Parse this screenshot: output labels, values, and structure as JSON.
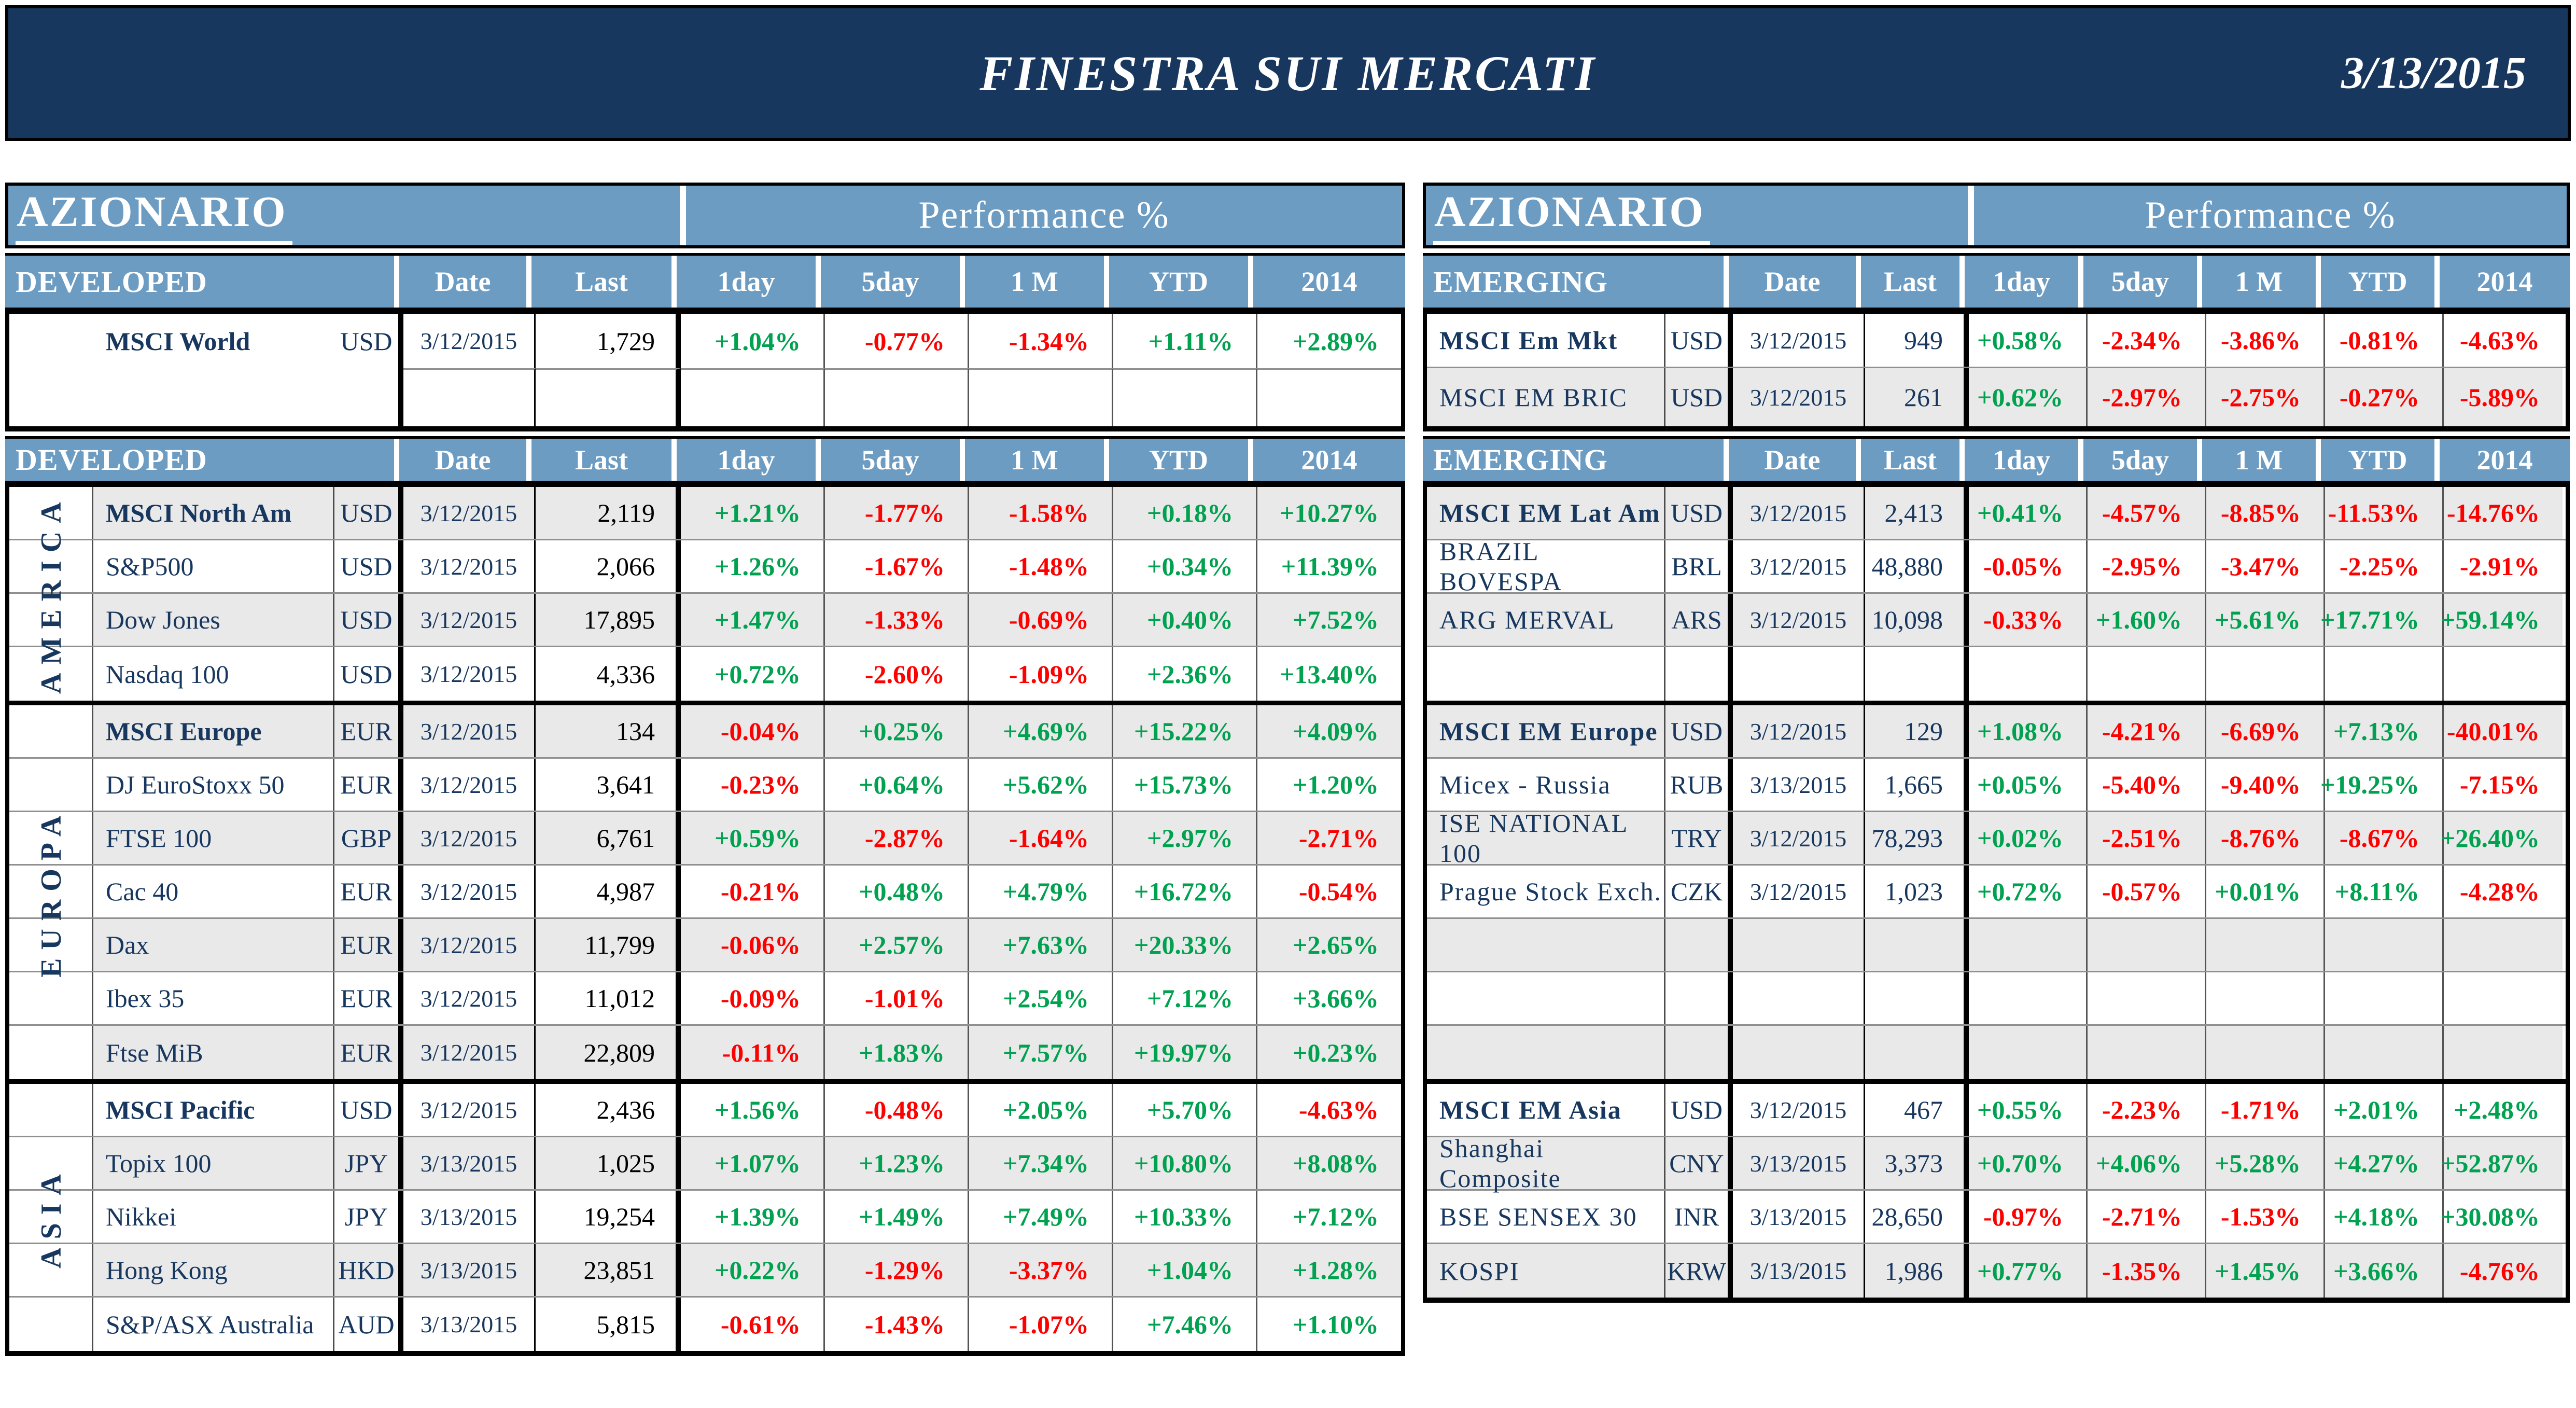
{
  "banner": {
    "title": "FINESTRA SUI MERCATI",
    "date": "3/13/2015"
  },
  "col_headers": {
    "date": "Date",
    "last": "Last",
    "perf": [
      "1day",
      "5day",
      "1 M",
      "YTD",
      "2014"
    ]
  },
  "colors": {
    "banner_navy": "#17375E",
    "header_blue": "#6D9CC3",
    "stripe_gray": "#E9E9E9",
    "positive_green": "#00A14F",
    "negative_red": "#FE0000",
    "text_navy": "#17375E"
  },
  "tables": {
    "left": {
      "title": "AZIONARIO",
      "perf_title": "Performance %",
      "group_label": "DEVELOPED",
      "top_rows": [
        {
          "name": "MSCI World",
          "bold": true,
          "ccy": "USD",
          "date": "3/12/2015",
          "last": "1,729",
          "perf": [
            "+1.04%",
            "-0.77%",
            "-1.34%",
            "+1.11%",
            "+2.89%"
          ],
          "stripe": false
        },
        {
          "name": "",
          "bold": false,
          "ccy": "",
          "date": "",
          "last": "",
          "perf": [
            "",
            "",
            "",
            "",
            ""
          ],
          "stripe": false
        }
      ],
      "sections": [
        {
          "label": "AMERICA",
          "rows": [
            {
              "name": "MSCI North Am",
              "bold": true,
              "ccy": "USD",
              "date": "3/12/2015",
              "last": "2,119",
              "perf": [
                "+1.21%",
                "-1.77%",
                "-1.58%",
                "+0.18%",
                "+10.27%"
              ],
              "stripe": true
            },
            {
              "name": "S&P500",
              "bold": false,
              "ccy": "USD",
              "date": "3/12/2015",
              "last": "2,066",
              "perf": [
                "+1.26%",
                "-1.67%",
                "-1.48%",
                "+0.34%",
                "+11.39%"
              ],
              "stripe": false
            },
            {
              "name": "Dow Jones",
              "bold": false,
              "ccy": "USD",
              "date": "3/12/2015",
              "last": "17,895",
              "perf": [
                "+1.47%",
                "-1.33%",
                "-0.69%",
                "+0.40%",
                "+7.52%"
              ],
              "stripe": true
            },
            {
              "name": "Nasdaq 100",
              "bold": false,
              "ccy": "USD",
              "date": "3/12/2015",
              "last": "4,336",
              "perf": [
                "+0.72%",
                "-2.60%",
                "-1.09%",
                "+2.36%",
                "+13.40%"
              ],
              "stripe": false
            }
          ]
        },
        {
          "label": "EUROPA",
          "rows": [
            {
              "name": "MSCI Europe",
              "bold": true,
              "ccy": "EUR",
              "date": "3/12/2015",
              "last": "134",
              "perf": [
                "-0.04%",
                "+0.25%",
                "+4.69%",
                "+15.22%",
                "+4.09%"
              ],
              "stripe": true
            },
            {
              "name": "DJ EuroStoxx 50",
              "bold": false,
              "ccy": "EUR",
              "date": "3/12/2015",
              "last": "3,641",
              "perf": [
                "-0.23%",
                "+0.64%",
                "+5.62%",
                "+15.73%",
                "+1.20%"
              ],
              "stripe": false
            },
            {
              "name": "FTSE 100",
              "bold": false,
              "ccy": "GBP",
              "date": "3/12/2015",
              "last": "6,761",
              "perf": [
                "+0.59%",
                "-2.87%",
                "-1.64%",
                "+2.97%",
                "-2.71%"
              ],
              "stripe": true
            },
            {
              "name": "Cac 40",
              "bold": false,
              "ccy": "EUR",
              "date": "3/12/2015",
              "last": "4,987",
              "perf": [
                "-0.21%",
                "+0.48%",
                "+4.79%",
                "+16.72%",
                "-0.54%"
              ],
              "stripe": false
            },
            {
              "name": "Dax",
              "bold": false,
              "ccy": "EUR",
              "date": "3/12/2015",
              "last": "11,799",
              "perf": [
                "-0.06%",
                "+2.57%",
                "+7.63%",
                "+20.33%",
                "+2.65%"
              ],
              "stripe": true
            },
            {
              "name": "Ibex 35",
              "bold": false,
              "ccy": "EUR",
              "date": "3/12/2015",
              "last": "11,012",
              "perf": [
                "-0.09%",
                "-1.01%",
                "+2.54%",
                "+7.12%",
                "+3.66%"
              ],
              "stripe": false
            },
            {
              "name": "Ftse MiB",
              "bold": false,
              "ccy": "EUR",
              "date": "3/12/2015",
              "last": "22,809",
              "perf": [
                "-0.11%",
                "+1.83%",
                "+7.57%",
                "+19.97%",
                "+0.23%"
              ],
              "stripe": true
            }
          ]
        },
        {
          "label": "ASIA",
          "rows": [
            {
              "name": "MSCI Pacific",
              "bold": true,
              "ccy": "USD",
              "date": "3/12/2015",
              "last": "2,436",
              "perf": [
                "+1.56%",
                "-0.48%",
                "+2.05%",
                "+5.70%",
                "-4.63%"
              ],
              "stripe": false
            },
            {
              "name": "Topix 100",
              "bold": false,
              "ccy": "JPY",
              "date": "3/13/2015",
              "last": "1,025",
              "perf": [
                "+1.07%",
                "+1.23%",
                "+7.34%",
                "+10.80%",
                "+8.08%"
              ],
              "stripe": true
            },
            {
              "name": "Nikkei",
              "bold": false,
              "ccy": "JPY",
              "date": "3/13/2015",
              "last": "19,254",
              "perf": [
                "+1.39%",
                "+1.49%",
                "+7.49%",
                "+10.33%",
                "+7.12%"
              ],
              "stripe": false
            },
            {
              "name": "Hong Kong",
              "bold": false,
              "ccy": "HKD",
              "date": "3/13/2015",
              "last": "23,851",
              "perf": [
                "+0.22%",
                "-1.29%",
                "-3.37%",
                "+1.04%",
                "+1.28%"
              ],
              "stripe": true
            },
            {
              "name": "S&P/ASX Australia",
              "bold": false,
              "ccy": "AUD",
              "date": "3/13/2015",
              "last": "5,815",
              "perf": [
                "-0.61%",
                "-1.43%",
                "-1.07%",
                "+7.46%",
                "+1.10%"
              ],
              "stripe": false
            }
          ]
        }
      ]
    },
    "right": {
      "title": "AZIONARIO",
      "perf_title": "Performance %",
      "group_label": "EMERGING",
      "top_rows": [
        {
          "name": "MSCI Em Mkt",
          "bold": true,
          "ccy": "USD",
          "date": "3/12/2015",
          "last": "949",
          "perf": [
            "+0.58%",
            "-2.34%",
            "-3.86%",
            "-0.81%",
            "-4.63%"
          ],
          "stripe": false
        },
        {
          "name": "MSCI EM BRIC",
          "bold": false,
          "ccy": "USD",
          "date": "3/12/2015",
          "last": "261",
          "perf": [
            "+0.62%",
            "-2.97%",
            "-2.75%",
            "-0.27%",
            "-5.89%"
          ],
          "stripe": true
        }
      ],
      "sections": [
        {
          "label": "",
          "rows": [
            {
              "name": "MSCI EM Lat Am",
              "bold": true,
              "ccy": "USD",
              "date": "3/12/2015",
              "last": "2,413",
              "perf": [
                "+0.41%",
                "-4.57%",
                "-8.85%",
                "-11.53%",
                "-14.76%"
              ],
              "stripe": true
            },
            {
              "name": "BRAZIL BOVESPA",
              "bold": false,
              "ccy": "BRL",
              "date": "3/12/2015",
              "last": "48,880",
              "perf": [
                "-0.05%",
                "-2.95%",
                "-3.47%",
                "-2.25%",
                "-2.91%"
              ],
              "stripe": false
            },
            {
              "name": "ARG MERVAL",
              "bold": false,
              "ccy": "ARS",
              "date": "3/12/2015",
              "last": "10,098",
              "perf": [
                "-0.33%",
                "+1.60%",
                "+5.61%",
                "+17.71%",
                "+59.14%"
              ],
              "stripe": true
            },
            {
              "name": "",
              "bold": false,
              "ccy": "",
              "date": "",
              "last": "",
              "perf": [
                "",
                "",
                "",
                "",
                ""
              ],
              "stripe": false
            }
          ]
        },
        {
          "label": "",
          "rows": [
            {
              "name": "MSCI EM Europe",
              "bold": true,
              "ccy": "USD",
              "date": "3/12/2015",
              "last": "129",
              "perf": [
                "+1.08%",
                "-4.21%",
                "-6.69%",
                "+7.13%",
                "-40.01%"
              ],
              "stripe": true
            },
            {
              "name": "Micex - Russia",
              "bold": false,
              "ccy": "RUB",
              "date": "3/13/2015",
              "last": "1,665",
              "perf": [
                "+0.05%",
                "-5.40%",
                "-9.40%",
                "+19.25%",
                "-7.15%"
              ],
              "stripe": false
            },
            {
              "name": "ISE NATIONAL 100",
              "bold": false,
              "ccy": "TRY",
              "date": "3/12/2015",
              "last": "78,293",
              "perf": [
                "+0.02%",
                "-2.51%",
                "-8.76%",
                "-8.67%",
                "+26.40%"
              ],
              "stripe": true
            },
            {
              "name": "Prague Stock Exch.",
              "bold": false,
              "ccy": "CZK",
              "date": "3/12/2015",
              "last": "1,023",
              "perf": [
                "+0.72%",
                "-0.57%",
                "+0.01%",
                "+8.11%",
                "-4.28%"
              ],
              "stripe": false
            },
            {
              "name": "",
              "bold": false,
              "ccy": "",
              "date": "",
              "last": "",
              "perf": [
                "",
                "",
                "",
                "",
                ""
              ],
              "stripe": true
            },
            {
              "name": "",
              "bold": false,
              "ccy": "",
              "date": "",
              "last": "",
              "perf": [
                "",
                "",
                "",
                "",
                ""
              ],
              "stripe": false
            },
            {
              "name": "",
              "bold": false,
              "ccy": "",
              "date": "",
              "last": "",
              "perf": [
                "",
                "",
                "",
                "",
                ""
              ],
              "stripe": true
            }
          ]
        },
        {
          "label": "",
          "rows": [
            {
              "name": "MSCI EM Asia",
              "bold": true,
              "ccy": "USD",
              "date": "3/12/2015",
              "last": "467",
              "perf": [
                "+0.55%",
                "-2.23%",
                "-1.71%",
                "+2.01%",
                "+2.48%"
              ],
              "stripe": false
            },
            {
              "name": "Shanghai Composite",
              "bold": false,
              "ccy": "CNY",
              "date": "3/13/2015",
              "last": "3,373",
              "perf": [
                "+0.70%",
                "+4.06%",
                "+5.28%",
                "+4.27%",
                "+52.87%"
              ],
              "stripe": true
            },
            {
              "name": "BSE SENSEX 30",
              "bold": false,
              "ccy": "INR",
              "date": "3/13/2015",
              "last": "28,650",
              "perf": [
                "-0.97%",
                "-2.71%",
                "-1.53%",
                "+4.18%",
                "+30.08%"
              ],
              "stripe": false
            },
            {
              "name": "KOSPI",
              "bold": false,
              "ccy": "KRW",
              "date": "3/13/2015",
              "last": "1,986",
              "perf": [
                "+0.77%",
                "-1.35%",
                "+1.45%",
                "+3.66%",
                "-4.76%"
              ],
              "stripe": true
            }
          ]
        }
      ]
    }
  }
}
